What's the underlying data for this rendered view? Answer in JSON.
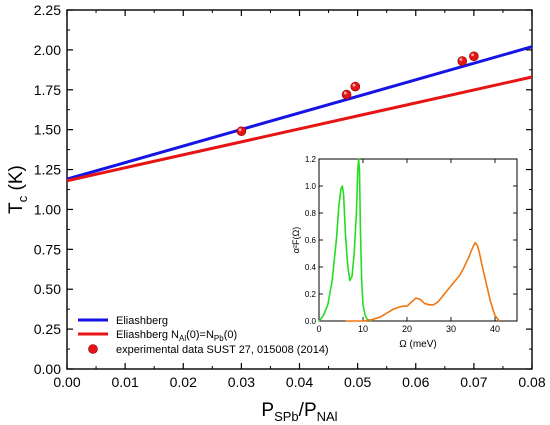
{
  "chart_data": [
    {
      "type": "line",
      "xlabel": "P",
      "xlabel_sub": "SPb",
      "xlabel_sep": "/P",
      "xlabel_sub2": "NAl",
      "ylabel": "T",
      "ylabel_sub": "c",
      "ylabel_unit": "(K)",
      "xlim": [
        0.0,
        0.08
      ],
      "ylim": [
        0.0,
        2.25
      ],
      "x_ticks": [
        "0.00",
        "0.01",
        "0.02",
        "0.03",
        "0.04",
        "0.05",
        "0.06",
        "0.07",
        "0.08"
      ],
      "y_ticks": [
        "0.00",
        "0.25",
        "0.50",
        "0.75",
        "1.00",
        "1.25",
        "1.50",
        "1.75",
        "2.00",
        "2.25"
      ],
      "legend_placement": "bottom-left",
      "series": [
        {
          "name": "Eliashberg",
          "color": "#1414e6",
          "style": "line",
          "x": [
            0.0,
            0.08
          ],
          "y": [
            1.19,
            2.02
          ]
        },
        {
          "name": "Eliashberg N",
          "name_sub1": "Al",
          "name_mid": "(0)=N",
          "name_sub2": "Pb",
          "name_end": "(0)",
          "color": "#e61414",
          "style": "line",
          "x": [
            0.0,
            0.08
          ],
          "y": [
            1.18,
            1.83
          ]
        },
        {
          "name": "experimental data SUST 27, 015008 (2014)",
          "color": "#e61414",
          "style": "marker",
          "x": [
            0.03,
            0.0481,
            0.0496,
            0.068,
            0.07
          ],
          "y": [
            1.49,
            1.72,
            1.77,
            1.93,
            1.96
          ]
        }
      ]
    },
    {
      "type": "line",
      "inset": true,
      "xlabel": "Ω (meV)",
      "ylabel": "α²F(Ω)",
      "xlim": [
        0,
        45
      ],
      "ylim": [
        0.0,
        1.2
      ],
      "x_ticks": [
        "0",
        "10",
        "20",
        "30",
        "40"
      ],
      "y_ticks": [
        "0.0",
        "0.2",
        "0.4",
        "0.6",
        "0.8",
        "1.0",
        "1.2"
      ],
      "series": [
        {
          "color": "#22dd22",
          "x": [
            0,
            1,
            2,
            3,
            4,
            4.5,
            5,
            5.3,
            5.6,
            6,
            6.5,
            7,
            7.5,
            8,
            8.5,
            8.8,
            9.0,
            9.2,
            9.4,
            9.7,
            10,
            10.5,
            11,
            12
          ],
          "y": [
            0.0,
            0.04,
            0.12,
            0.3,
            0.62,
            0.85,
            0.98,
            1.0,
            0.93,
            0.65,
            0.42,
            0.3,
            0.33,
            0.5,
            0.8,
            1.1,
            1.2,
            1.12,
            0.7,
            0.3,
            0.12,
            0.04,
            0.01,
            0.0
          ]
        },
        {
          "color": "#ee7711",
          "x": [
            6,
            8,
            10,
            12,
            14,
            15,
            16,
            17,
            18,
            19,
            20,
            21,
            22,
            23,
            24,
            25,
            26,
            27,
            28,
            29,
            30,
            31,
            32,
            33,
            34,
            35,
            35.5,
            36,
            36.5,
            37,
            38,
            39,
            40,
            41
          ],
          "y": [
            0.0,
            0.0,
            0.0,
            0.01,
            0.03,
            0.05,
            0.07,
            0.09,
            0.1,
            0.11,
            0.11,
            0.14,
            0.17,
            0.16,
            0.13,
            0.12,
            0.12,
            0.14,
            0.18,
            0.22,
            0.26,
            0.3,
            0.34,
            0.4,
            0.47,
            0.55,
            0.58,
            0.56,
            0.5,
            0.42,
            0.28,
            0.14,
            0.04,
            0.0
          ]
        }
      ]
    }
  ]
}
